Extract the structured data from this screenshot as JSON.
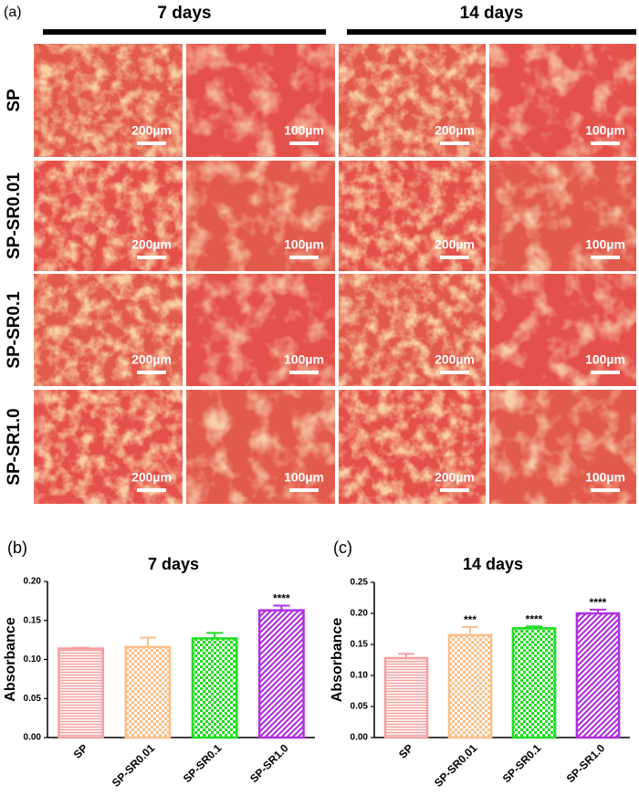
{
  "panel_a": {
    "label": "(a)",
    "columns": [
      "7 days",
      "14 days"
    ],
    "rows": [
      "SP",
      "SP-SR0.01",
      "SP-SR0.1",
      "SP-SR1.0"
    ],
    "scale_labels": [
      "200µm",
      "100µm"
    ]
  },
  "chart_data": [
    {
      "type": "bar",
      "panel_label": "(b)",
      "title": "7 days",
      "y_label": "Absorbance",
      "categories": [
        "SP",
        "SP-SR0.01",
        "SP-SR0.1",
        "SP-SR1.0"
      ],
      "values": [
        0.114,
        0.116,
        0.127,
        0.163
      ],
      "errors": [
        0.001,
        0.012,
        0.007,
        0.006
      ],
      "annotations": [
        null,
        null,
        null,
        "****"
      ],
      "colors": [
        "#f4a0a0",
        "#f8c08a",
        "#22dd22",
        "#b030e0"
      ],
      "hatches": [
        "horizontal",
        "grid",
        "grid",
        "diagonal"
      ],
      "ylim": [
        0,
        0.2
      ],
      "yticks": [
        {
          "value": 0,
          "label": "0.00"
        },
        {
          "value": 0.05,
          "label": "0.05"
        },
        {
          "value": 0.1,
          "label": "0.10"
        },
        {
          "value": 0.15,
          "label": "0.15"
        },
        {
          "value": 0.2,
          "label": "0.20"
        }
      ]
    },
    {
      "type": "bar",
      "panel_label": "(c)",
      "title": "14 days",
      "y_label": "Absorbance",
      "categories": [
        "SP",
        "SP-SR0.01",
        "SP-SR0.1",
        "SP-SR1.0"
      ],
      "values": [
        0.128,
        0.165,
        0.176,
        0.2
      ],
      "errors": [
        0.007,
        0.013,
        0.003,
        0.006
      ],
      "annotations": [
        null,
        "***",
        "****",
        "****"
      ],
      "colors": [
        "#f4a0a0",
        "#f8c08a",
        "#22dd22",
        "#b030e0"
      ],
      "hatches": [
        "horizontal",
        "grid",
        "grid",
        "diagonal"
      ],
      "ylim": [
        0,
        0.25
      ],
      "yticks": [
        {
          "value": 0,
          "label": "0.00"
        },
        {
          "value": 0.05,
          "label": "0.05"
        },
        {
          "value": 0.1,
          "label": "0.10"
        },
        {
          "value": 0.15,
          "label": "0.15"
        },
        {
          "value": 0.2,
          "label": "0.20"
        },
        {
          "value": 0.25,
          "label": "0.25"
        }
      ]
    }
  ]
}
